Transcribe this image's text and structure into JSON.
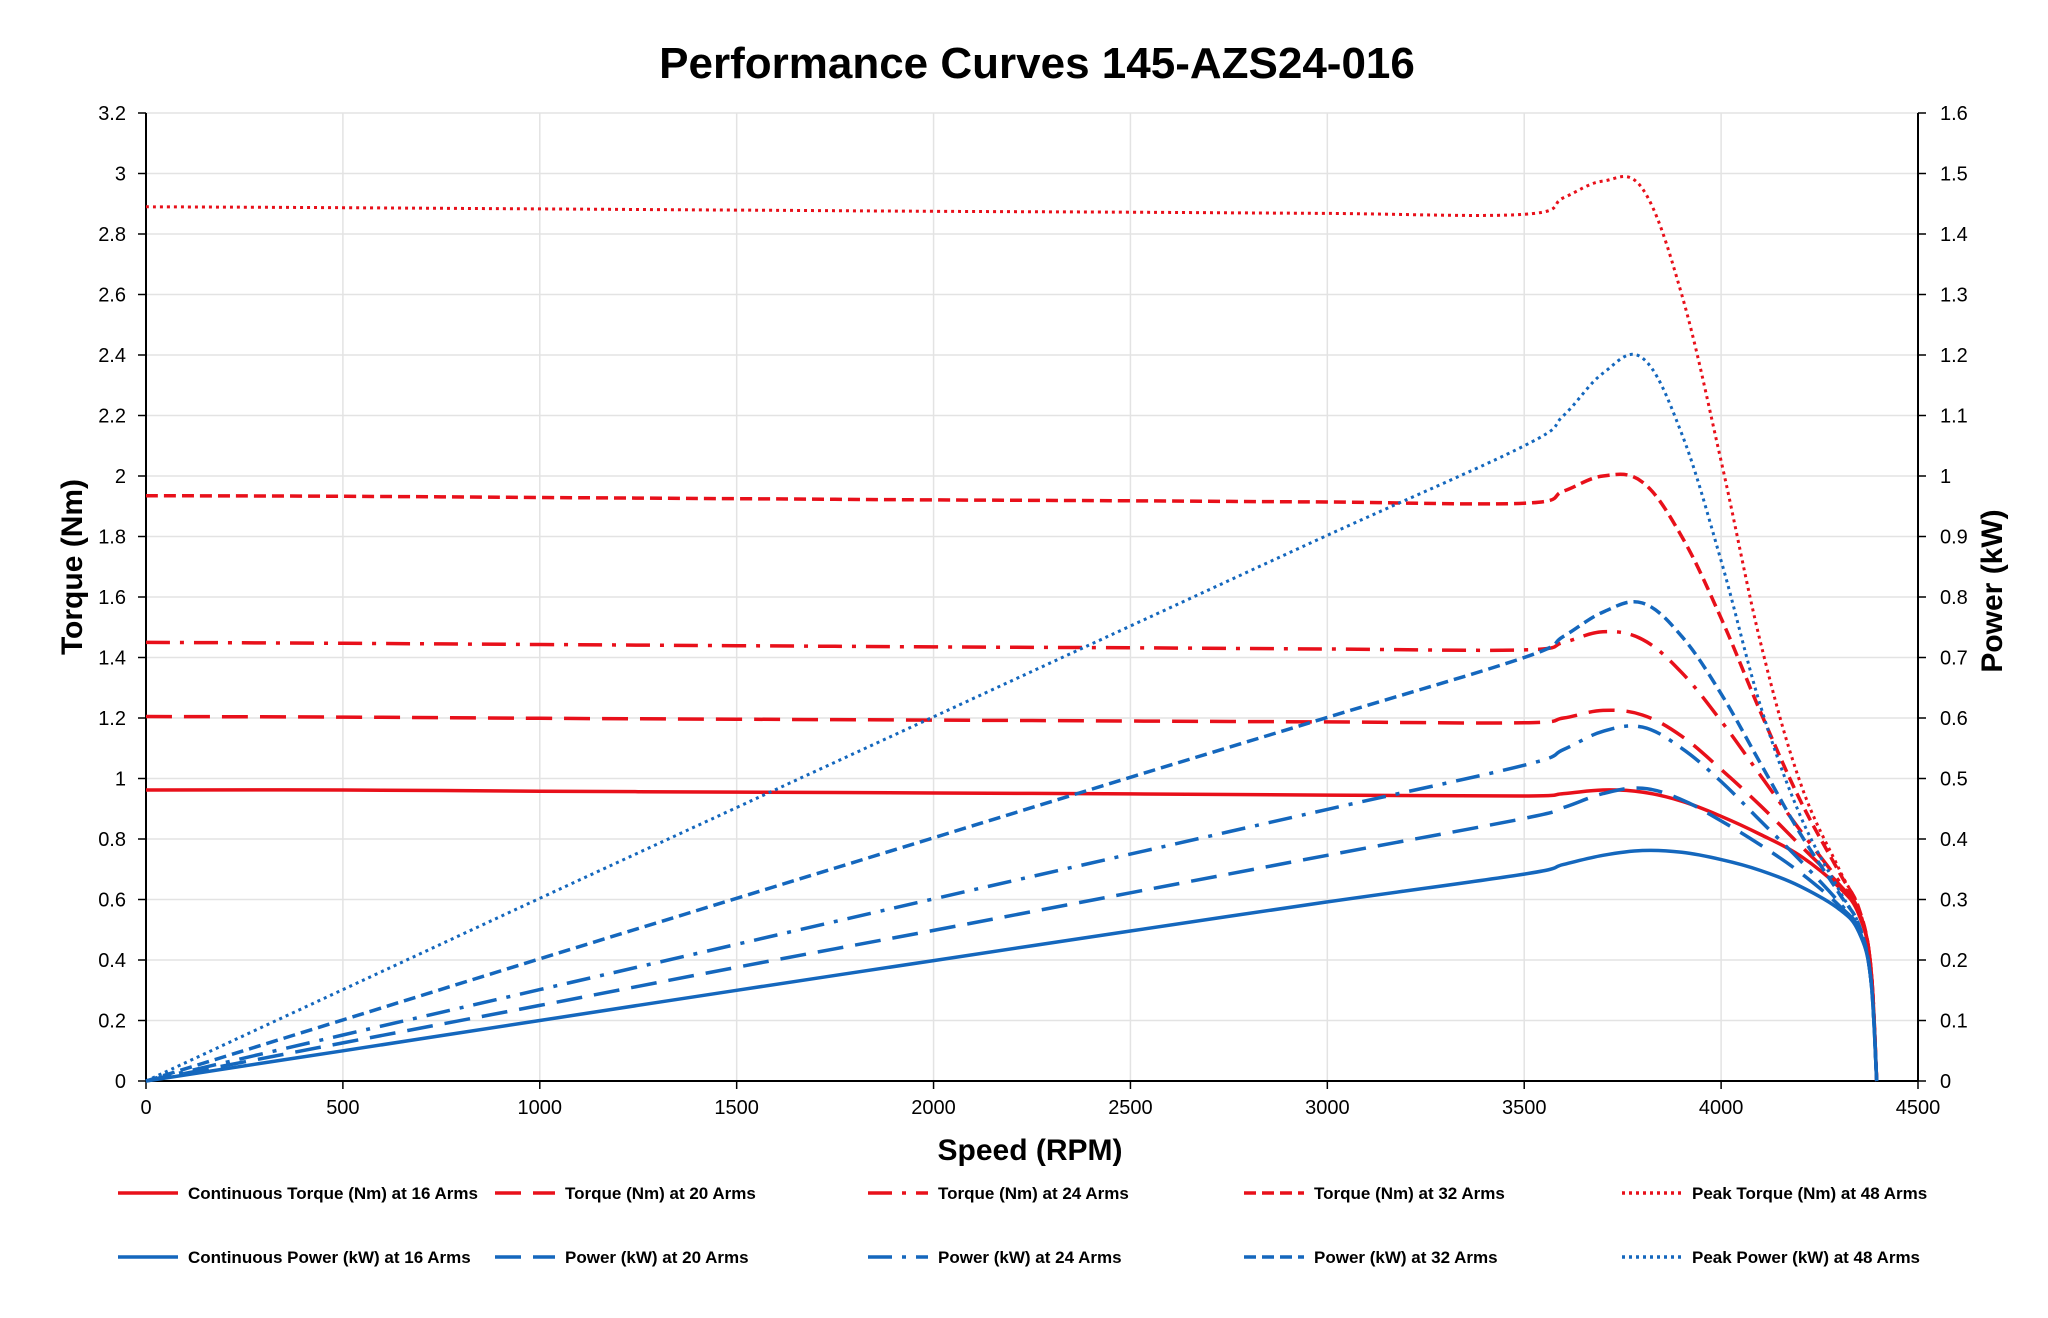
{
  "chart_data": {
    "type": "line",
    "title": "Performance Curves 145-AZS24-016",
    "xlabel": "Speed (RPM)",
    "ylabel_left": "Torque (Nm)",
    "ylabel_right": "Power (kW)",
    "xlim": [
      0,
      4500
    ],
    "ylim_left": [
      0,
      3.2
    ],
    "ylim_right": [
      0,
      1.6
    ],
    "x_ticks": [
      0,
      500,
      1000,
      1500,
      2000,
      2500,
      3000,
      3500,
      4000,
      4500
    ],
    "y_ticks_left": [
      "0",
      "0.2",
      "0.4",
      "0.6",
      "0.8",
      "1",
      "1.2",
      "1.4",
      "1.6",
      "1.8",
      "2",
      "2.2",
      "2.4",
      "2.6",
      "2.8",
      "3",
      "3.2"
    ],
    "y_ticks_right": [
      "0",
      "0.1",
      "0.2",
      "0.3",
      "0.4",
      "0.5",
      "0.6",
      "0.7",
      "0.8",
      "0.9",
      "1",
      "1.1",
      "1.2",
      "1.3",
      "1.4",
      "1.5",
      "1.6"
    ],
    "grid": true,
    "legend_position": "bottom",
    "series": [
      {
        "name": "Continuous Torque (Nm) at 16 Arms",
        "axis": "left",
        "color": "#e8101a",
        "dash": "solid",
        "points": [
          [
            0,
            0.962
          ],
          [
            500,
            0.962
          ],
          [
            1000,
            0.958
          ],
          [
            1500,
            0.955
          ],
          [
            2000,
            0.952
          ],
          [
            2500,
            0.949
          ],
          [
            3000,
            0.945
          ],
          [
            3500,
            0.942
          ],
          [
            3600,
            0.95
          ],
          [
            3700,
            0.962
          ],
          [
            3800,
            0.955
          ],
          [
            3900,
            0.925
          ],
          [
            4000,
            0.875
          ],
          [
            4100,
            0.815
          ],
          [
            4200,
            0.745
          ],
          [
            4300,
            0.64
          ],
          [
            4350,
            0.55
          ],
          [
            4380,
            0.38
          ],
          [
            4395,
            0.0
          ]
        ]
      },
      {
        "name": "Torque (Nm) at 20 Arms",
        "axis": "left",
        "color": "#e8101a",
        "dash": "long",
        "points": [
          [
            0,
            1.205
          ],
          [
            500,
            1.203
          ],
          [
            1000,
            1.199
          ],
          [
            1500,
            1.196
          ],
          [
            2000,
            1.193
          ],
          [
            2500,
            1.19
          ],
          [
            3000,
            1.187
          ],
          [
            3500,
            1.184
          ],
          [
            3600,
            1.2
          ],
          [
            3700,
            1.225
          ],
          [
            3800,
            1.21
          ],
          [
            3900,
            1.14
          ],
          [
            4000,
            1.03
          ],
          [
            4100,
            0.91
          ],
          [
            4200,
            0.78
          ],
          [
            4300,
            0.65
          ],
          [
            4350,
            0.56
          ],
          [
            4380,
            0.38
          ],
          [
            4395,
            0.0
          ]
        ]
      },
      {
        "name": "Torque (Nm) at 24 Arms",
        "axis": "left",
        "color": "#e8101a",
        "dash": "dashdot",
        "points": [
          [
            0,
            1.45
          ],
          [
            500,
            1.447
          ],
          [
            1000,
            1.443
          ],
          [
            1500,
            1.439
          ],
          [
            2000,
            1.435
          ],
          [
            2500,
            1.432
          ],
          [
            3000,
            1.428
          ],
          [
            3500,
            1.425
          ],
          [
            3600,
            1.45
          ],
          [
            3700,
            1.485
          ],
          [
            3800,
            1.46
          ],
          [
            3900,
            1.35
          ],
          [
            4000,
            1.19
          ],
          [
            4100,
            1.01
          ],
          [
            4200,
            0.83
          ],
          [
            4300,
            0.66
          ],
          [
            4350,
            0.56
          ],
          [
            4380,
            0.38
          ],
          [
            4395,
            0.0
          ]
        ]
      },
      {
        "name": "Torque (Nm) at 32 Arms",
        "axis": "left",
        "color": "#e8101a",
        "dash": "short",
        "points": [
          [
            0,
            1.935
          ],
          [
            500,
            1.933
          ],
          [
            1000,
            1.929
          ],
          [
            1500,
            1.925
          ],
          [
            2000,
            1.921
          ],
          [
            2500,
            1.918
          ],
          [
            3000,
            1.914
          ],
          [
            3500,
            1.91
          ],
          [
            3600,
            1.95
          ],
          [
            3700,
            2.0
          ],
          [
            3800,
            1.98
          ],
          [
            3900,
            1.8
          ],
          [
            4000,
            1.53
          ],
          [
            4100,
            1.22
          ],
          [
            4200,
            0.93
          ],
          [
            4300,
            0.69
          ],
          [
            4350,
            0.57
          ],
          [
            4380,
            0.38
          ],
          [
            4395,
            0.0
          ]
        ]
      },
      {
        "name": "Peak Torque (Nm) at 48  Arms",
        "axis": "left",
        "color": "#e8101a",
        "dash": "dot",
        "points": [
          [
            0,
            2.89
          ],
          [
            500,
            2.887
          ],
          [
            1000,
            2.883
          ],
          [
            1500,
            2.879
          ],
          [
            2000,
            2.875
          ],
          [
            2500,
            2.872
          ],
          [
            3000,
            2.868
          ],
          [
            3500,
            2.865
          ],
          [
            3600,
            2.92
          ],
          [
            3700,
            2.975
          ],
          [
            3800,
            2.95
          ],
          [
            3900,
            2.6
          ],
          [
            4000,
            2.05
          ],
          [
            4100,
            1.45
          ],
          [
            4200,
            0.99
          ],
          [
            4300,
            0.7
          ],
          [
            4350,
            0.57
          ],
          [
            4380,
            0.38
          ],
          [
            4395,
            0.0
          ]
        ]
      },
      {
        "name": "Continuous Power (kW) at 16 Arms",
        "axis": "right",
        "color": "#1467bd",
        "dash": "solid",
        "points": [
          [
            0,
            0.0
          ],
          [
            500,
            0.05
          ],
          [
            1000,
            0.1
          ],
          [
            1500,
            0.15
          ],
          [
            2000,
            0.199
          ],
          [
            2500,
            0.248
          ],
          [
            3000,
            0.296
          ],
          [
            3500,
            0.342
          ],
          [
            3600,
            0.358
          ],
          [
            3700,
            0.373
          ],
          [
            3800,
            0.381
          ],
          [
            3900,
            0.378
          ],
          [
            4000,
            0.366
          ],
          [
            4100,
            0.348
          ],
          [
            4200,
            0.322
          ],
          [
            4300,
            0.284
          ],
          [
            4350,
            0.246
          ],
          [
            4380,
            0.17
          ],
          [
            4395,
            0.0
          ]
        ]
      },
      {
        "name": "Power (kW) at 20 Arms",
        "axis": "right",
        "color": "#1467bd",
        "dash": "long",
        "points": [
          [
            0,
            0.0
          ],
          [
            500,
            0.063
          ],
          [
            1000,
            0.125
          ],
          [
            1500,
            0.188
          ],
          [
            2000,
            0.249
          ],
          [
            2500,
            0.311
          ],
          [
            3000,
            0.373
          ],
          [
            3500,
            0.434
          ],
          [
            3600,
            0.452
          ],
          [
            3700,
            0.475
          ],
          [
            3800,
            0.484
          ],
          [
            3900,
            0.465
          ],
          [
            4000,
            0.43
          ],
          [
            4100,
            0.39
          ],
          [
            4200,
            0.345
          ],
          [
            4300,
            0.29
          ],
          [
            4350,
            0.25
          ],
          [
            4380,
            0.17
          ],
          [
            4395,
            0.0
          ]
        ]
      },
      {
        "name": "Power (kW) at 24 Arms",
        "axis": "right",
        "color": "#1467bd",
        "dash": "dashdot",
        "points": [
          [
            0,
            0.0
          ],
          [
            500,
            0.076
          ],
          [
            1000,
            0.151
          ],
          [
            1500,
            0.226
          ],
          [
            2000,
            0.301
          ],
          [
            2500,
            0.375
          ],
          [
            3000,
            0.449
          ],
          [
            3500,
            0.522
          ],
          [
            3600,
            0.548
          ],
          [
            3700,
            0.578
          ],
          [
            3800,
            0.585
          ],
          [
            3900,
            0.55
          ],
          [
            4000,
            0.495
          ],
          [
            4100,
            0.43
          ],
          [
            4200,
            0.365
          ],
          [
            4300,
            0.295
          ],
          [
            4350,
            0.25
          ],
          [
            4380,
            0.17
          ],
          [
            4395,
            0.0
          ]
        ]
      },
      {
        "name": "Power (kW) at 32 Arms",
        "axis": "right",
        "color": "#1467bd",
        "dash": "short",
        "points": [
          [
            0,
            0.0
          ],
          [
            500,
            0.101
          ],
          [
            1000,
            0.202
          ],
          [
            1500,
            0.302
          ],
          [
            2000,
            0.402
          ],
          [
            2500,
            0.502
          ],
          [
            3000,
            0.601
          ],
          [
            3500,
            0.7
          ],
          [
            3600,
            0.735
          ],
          [
            3700,
            0.775
          ],
          [
            3800,
            0.79
          ],
          [
            3900,
            0.735
          ],
          [
            4000,
            0.64
          ],
          [
            4100,
            0.525
          ],
          [
            4200,
            0.41
          ],
          [
            4300,
            0.31
          ],
          [
            4350,
            0.258
          ],
          [
            4380,
            0.17
          ],
          [
            4395,
            0.0
          ]
        ]
      },
      {
        "name": "Peak Power (kW) at 48 Arms",
        "axis": "right",
        "color": "#1467bd",
        "dash": "dot",
        "points": [
          [
            0,
            0.0
          ],
          [
            500,
            0.151
          ],
          [
            1000,
            0.302
          ],
          [
            1500,
            0.452
          ],
          [
            2000,
            0.602
          ],
          [
            2500,
            0.752
          ],
          [
            3000,
            0.902
          ],
          [
            3500,
            1.05
          ],
          [
            3600,
            1.1
          ],
          [
            3700,
            1.17
          ],
          [
            3800,
            1.195
          ],
          [
            3900,
            1.07
          ],
          [
            4000,
            0.86
          ],
          [
            4100,
            0.62
          ],
          [
            4200,
            0.44
          ],
          [
            4300,
            0.315
          ],
          [
            4350,
            0.258
          ],
          [
            4380,
            0.17
          ],
          [
            4395,
            0.0
          ]
        ]
      }
    ]
  }
}
